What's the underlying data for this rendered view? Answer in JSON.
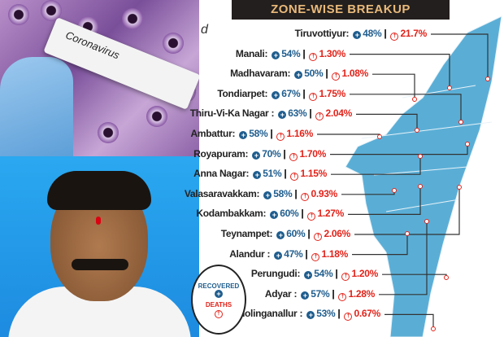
{
  "photo_top": {
    "tube_label": "Coronavirus"
  },
  "infographic": {
    "title": "ZONE-WISE BREAKUP",
    "partial_text": "d",
    "zones": [
      {
        "name": "Tiruvottiyur:",
        "recovered": "48%",
        "deaths": "21.7%"
      },
      {
        "name": "Manali:",
        "recovered": "54%",
        "deaths": "1.30%"
      },
      {
        "name": "Madhavaram:",
        "recovered": "50%",
        "deaths": "1.08%"
      },
      {
        "name": "Tondiarpet:",
        "recovered": "67%",
        "deaths": "1.75%"
      },
      {
        "name": "Thiru-Vi-Ka Nagar :",
        "recovered": "63%",
        "deaths": "2.04%"
      },
      {
        "name": "Ambattur:",
        "recovered": "58%",
        "deaths": "1.16%"
      },
      {
        "name": "Royapuram:",
        "recovered": "70%",
        "deaths": "1.70%"
      },
      {
        "name": "Anna Nagar:",
        "recovered": "51%",
        "deaths": "1.15%"
      },
      {
        "name": "Valasaravakkam:",
        "recovered": "58%",
        "deaths": "0.93%"
      },
      {
        "name": "Kodambakkam:",
        "recovered": "60%",
        "deaths": "1.27%"
      },
      {
        "name": "Teynampet:",
        "recovered": "60%",
        "deaths": "2.06%"
      },
      {
        "name": "Alandur :",
        "recovered": "47%",
        "deaths": "1.18%"
      },
      {
        "name": "Perungudi:",
        "recovered": "54%",
        "deaths": "1.20%"
      },
      {
        "name": "Adyar :",
        "recovered": "57%",
        "deaths": "1.28%"
      },
      {
        "name": "Sholinganallur :",
        "recovered": "53%",
        "deaths": "0.67%"
      }
    ],
    "legend": {
      "recovered": "RECOVERED",
      "deaths": "DEATHS"
    },
    "colors": {
      "recovered": "#1f5d8e",
      "deaths": "#e2231a",
      "map": "#5aaed6",
      "title_bg": "#231f1e",
      "title_text": "#e9b97a"
    }
  }
}
